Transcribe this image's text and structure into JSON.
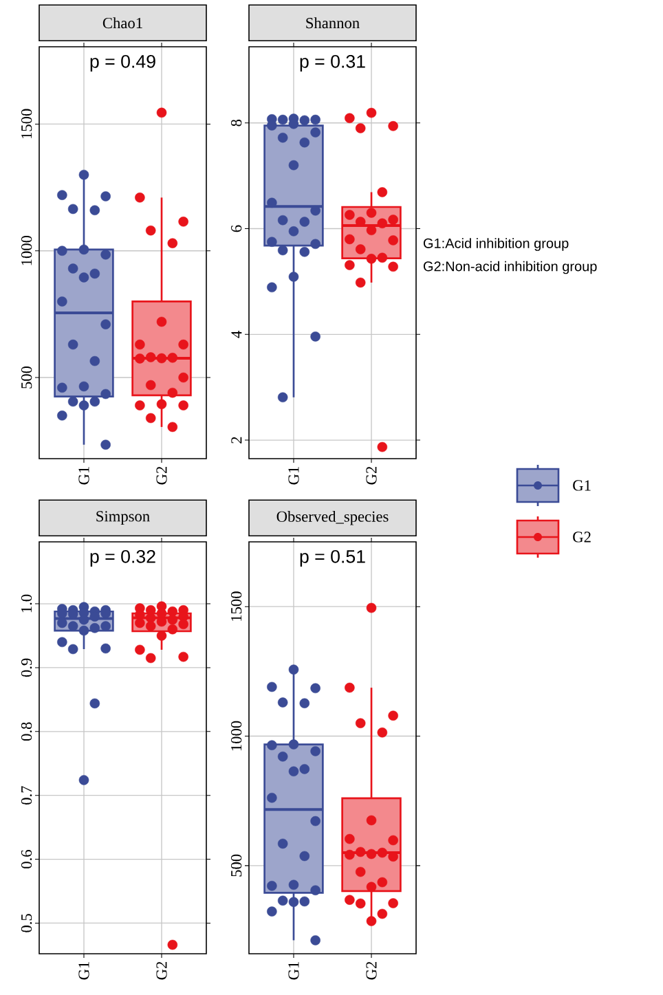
{
  "chart_data": [
    {
      "type": "box",
      "title": "Chao1",
      "categories": [
        "G1",
        "G2"
      ],
      "ylim": [
        180,
        1805
      ],
      "yticks": [
        500,
        1000,
        1500
      ],
      "grid": true,
      "marker": "circle",
      "annotations": [
        "p = 0.49"
      ],
      "series": [
        {
          "type": "box",
          "color": "#3b4b96",
          "boxes": [
            {
              "low": 235,
              "q1": 425,
              "median": 755,
              "q3": 1005,
              "high": 1295
            },
            null
          ]
        },
        {
          "type": "box",
          "color": "#e8141b",
          "boxes": [
            null,
            {
              "low": 305,
              "q1": 430,
              "median": 576,
              "q3": 800,
              "high": 1210
            }
          ]
        },
        {
          "type": "scatter",
          "color": "#3b4b96",
          "x": [
            "G1",
            "G1",
            "G1",
            "G1",
            "G1",
            "G1",
            "G1",
            "G1",
            "G1",
            "G1",
            "G1",
            "G1",
            "G1",
            "G1",
            "G1",
            "G1",
            "G1",
            "G1",
            "G1",
            "G1",
            "G1",
            "G1",
            "G1"
          ],
          "values": [
            1300,
            1220,
            1215,
            1165,
            1160,
            1005,
            1000,
            985,
            930,
            910,
            895,
            800,
            710,
            630,
            565,
            465,
            460,
            435,
            405,
            405,
            390,
            350,
            235
          ]
        },
        {
          "type": "scatter",
          "color": "#e8141b",
          "x": [
            "G2",
            "G2",
            "G2",
            "G2",
            "G2",
            "G2",
            "G2",
            "G2",
            "G2",
            "G2",
            "G2",
            "G2",
            "G2",
            "G2",
            "G2",
            "G2",
            "G2",
            "G2",
            "G2",
            "G2"
          ],
          "values": [
            1545,
            1210,
            1115,
            1080,
            1030,
            720,
            630,
            630,
            580,
            578,
            576,
            575,
            500,
            470,
            440,
            395,
            390,
            390,
            340,
            305
          ]
        }
      ]
    },
    {
      "type": "box",
      "title": "Shannon",
      "categories": [
        "G1",
        "G2"
      ],
      "ylim": [
        1.65,
        9.44
      ],
      "yticks": [
        2,
        4,
        6,
        8
      ],
      "grid": true,
      "marker": "circle",
      "legend": "right",
      "annotations": [
        "p = 0.31",
        "G1:Acid inhibition group",
        "G2:Non-acid inhibition group"
      ],
      "series": [
        {
          "type": "box",
          "name": "G1",
          "color": "#3b4b96",
          "boxes": [
            {
              "low": 2.81,
              "q1": 5.68,
              "median": 6.42,
              "q3": 7.95,
              "high": 8.08
            },
            null
          ]
        },
        {
          "type": "box",
          "name": "G2",
          "color": "#e8141b",
          "boxes": [
            null,
            {
              "low": 4.98,
              "q1": 5.44,
              "median": 6.06,
              "q3": 6.41,
              "high": 6.69
            }
          ]
        },
        {
          "type": "scatter",
          "color": "#3b4b96",
          "x": [
            "G1",
            "G1",
            "G1",
            "G1",
            "G1",
            "G1",
            "G1",
            "G1",
            "G1",
            "G1",
            "G1",
            "G1",
            "G1",
            "G1",
            "G1",
            "G1",
            "G1",
            "G1",
            "G1",
            "G1",
            "G1",
            "G1",
            "G1",
            "G1"
          ],
          "values": [
            8.08,
            8.07,
            8.06,
            8.06,
            8.05,
            7.98,
            7.95,
            7.82,
            7.72,
            7.63,
            7.2,
            6.49,
            6.34,
            6.16,
            6.13,
            5.95,
            5.75,
            5.71,
            5.59,
            5.56,
            5.09,
            4.89,
            3.96,
            2.81
          ]
        },
        {
          "type": "scatter",
          "color": "#e8141b",
          "x": [
            "G2",
            "G2",
            "G2",
            "G2",
            "G2",
            "G2",
            "G2",
            "G2",
            "G2",
            "G2",
            "G2",
            "G2",
            "G2",
            "G2",
            "G2",
            "G2",
            "G2",
            "G2",
            "G2",
            "G2"
          ],
          "values": [
            8.19,
            8.09,
            7.94,
            7.9,
            6.69,
            6.3,
            6.26,
            6.17,
            6.13,
            6.1,
            5.97,
            5.8,
            5.78,
            5.61,
            5.45,
            5.43,
            5.31,
            5.28,
            4.98,
            1.87
          ]
        }
      ]
    },
    {
      "type": "box",
      "title": "Simpson",
      "categories": [
        "G1",
        "G2"
      ],
      "ylim": [
        0.452,
        1.097
      ],
      "yticks": [
        0.5,
        0.6,
        0.7,
        0.8,
        0.9,
        {
          "value": 1,
          "label": "1.0"
        }
      ],
      "grid": true,
      "marker": "circle",
      "annotations": [
        "p = 0.32"
      ],
      "series": [
        {
          "type": "box",
          "color": "#3b4b96",
          "boxes": [
            {
              "low": 0.929,
              "q1": 0.958,
              "median": 0.977,
              "q3": 0.988,
              "high": 0.996
            },
            null
          ]
        },
        {
          "type": "box",
          "color": "#e8141b",
          "boxes": [
            null,
            {
              "low": 0.928,
              "q1": 0.957,
              "median": 0.978,
              "q3": 0.985,
              "high": 0.996
            }
          ]
        },
        {
          "type": "scatter",
          "color": "#3b4b96",
          "x": [
            "G1",
            "G1",
            "G1",
            "G1",
            "G1",
            "G1",
            "G1",
            "G1",
            "G1",
            "G1",
            "G1",
            "G1",
            "G1",
            "G1",
            "G1",
            "G1",
            "G1",
            "G1",
            "G1",
            "G1",
            "G1"
          ],
          "values": [
            0.995,
            0.992,
            0.99,
            0.99,
            0.988,
            0.986,
            0.985,
            0.985,
            0.984,
            0.98,
            0.975,
            0.97,
            0.965,
            0.965,
            0.962,
            0.958,
            0.94,
            0.93,
            0.929,
            0.844,
            0.724
          ]
        },
        {
          "type": "scatter",
          "color": "#e8141b",
          "x": [
            "G2",
            "G2",
            "G2",
            "G2",
            "G2",
            "G2",
            "G2",
            "G2",
            "G2",
            "G2",
            "G2",
            "G2",
            "G2",
            "G2",
            "G2",
            "G2",
            "G2",
            "G2",
            "G2",
            "G2"
          ],
          "values": [
            0.996,
            0.993,
            0.99,
            0.99,
            0.988,
            0.985,
            0.983,
            0.98,
            0.978,
            0.975,
            0.972,
            0.97,
            0.968,
            0.965,
            0.96,
            0.95,
            0.928,
            0.917,
            0.915,
            0.466
          ]
        }
      ]
    },
    {
      "type": "box",
      "title": "Observed_species",
      "categories": [
        "G1",
        "G2"
      ],
      "ylim": [
        160,
        1750
      ],
      "yticks": [
        500,
        1000,
        1500
      ],
      "grid": true,
      "marker": "circle",
      "annotations": [
        "p = 0.51"
      ],
      "series": [
        {
          "type": "box",
          "color": "#3b4b96",
          "boxes": [
            {
              "low": 212,
              "q1": 395,
              "median": 717,
              "q3": 968,
              "high": 1257
            },
            null
          ]
        },
        {
          "type": "box",
          "color": "#e8141b",
          "boxes": [
            null,
            {
              "low": 286,
              "q1": 402,
              "median": 550,
              "q3": 760,
              "high": 1187
            }
          ]
        },
        {
          "type": "scatter",
          "color": "#3b4b96",
          "x": [
            "G1",
            "G1",
            "G1",
            "G1",
            "G1",
            "G1",
            "G1",
            "G1",
            "G1",
            "G1",
            "G1",
            "G1",
            "G1",
            "G1",
            "G1",
            "G1",
            "G1",
            "G1",
            "G1",
            "G1",
            "G1",
            "G1",
            "G1"
          ],
          "values": [
            1257,
            1190,
            1185,
            1130,
            1127,
            968,
            965,
            942,
            921,
            873,
            864,
            762,
            672,
            585,
            537,
            426,
            422,
            405,
            365,
            362,
            360,
            323,
            212
          ]
        },
        {
          "type": "scatter",
          "color": "#e8141b",
          "x": [
            "G2",
            "G2",
            "G2",
            "G2",
            "G2",
            "G2",
            "G2",
            "G2",
            "G2",
            "G2",
            "G2",
            "G2",
            "G2",
            "G2",
            "G2",
            "G2",
            "G2",
            "G2",
            "G2",
            "G2",
            "G2"
          ],
          "values": [
            1495,
            1187,
            1079,
            1050,
            1014,
            675,
            603,
            598,
            553,
            550,
            545,
            542,
            535,
            476,
            436,
            418,
            368,
            355,
            354,
            314,
            286
          ]
        }
      ]
    }
  ]
}
